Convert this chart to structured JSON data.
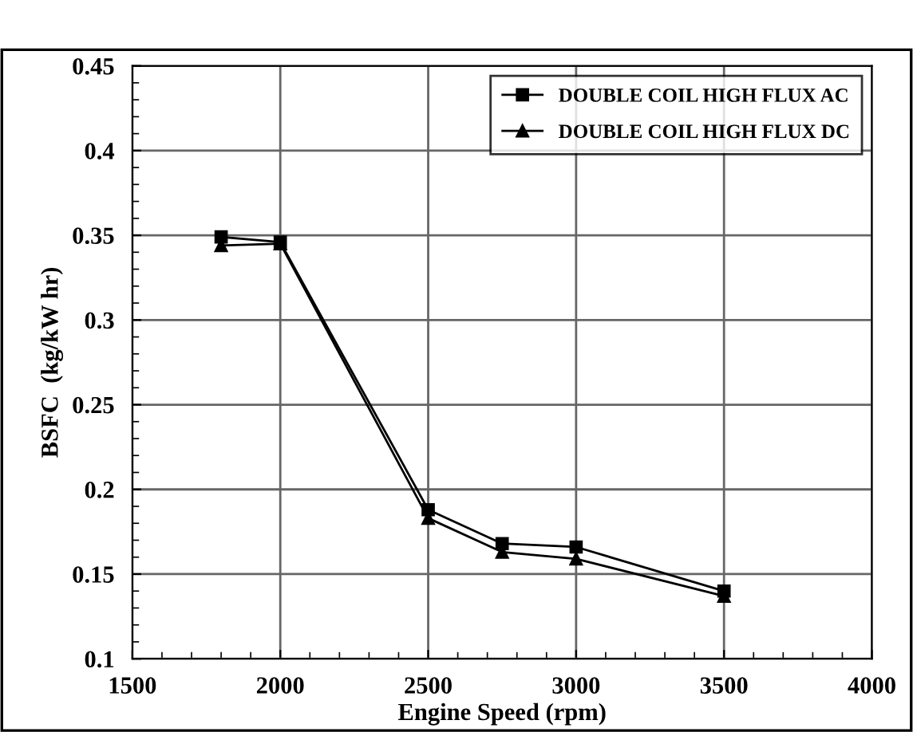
{
  "chart_data": {
    "type": "line",
    "xlabel": "Engine Speed (rpm)",
    "ylabel": "BSFC  (kg/kW hr)",
    "xlim": [
      1500,
      4000
    ],
    "xticks": [
      1500,
      2000,
      2500,
      3000,
      3500,
      4000
    ],
    "ylim": [
      0.1,
      0.45
    ],
    "yticks": [
      0.1,
      0.15,
      0.2,
      0.25,
      0.3,
      0.35,
      0.4,
      0.45
    ],
    "grid": true,
    "legend": "top right",
    "line_style": "solid",
    "series": [
      {
        "name": "DOUBLE COIL HIGH FLUX AC",
        "color": "#000000",
        "marker": "square",
        "x": [
          1800,
          2000,
          2500,
          2750,
          3000,
          3500
        ],
        "values": [
          0.349,
          0.346,
          0.188,
          0.168,
          0.166,
          0.14
        ]
      },
      {
        "name": "DOUBLE COIL HIGH FLUX DC",
        "color": "#000000",
        "marker": "triangle",
        "x": [
          1800,
          2000,
          2500,
          2750,
          3000,
          3500
        ],
        "values": [
          0.344,
          0.345,
          0.183,
          0.163,
          0.159,
          0.137
        ]
      }
    ]
  }
}
